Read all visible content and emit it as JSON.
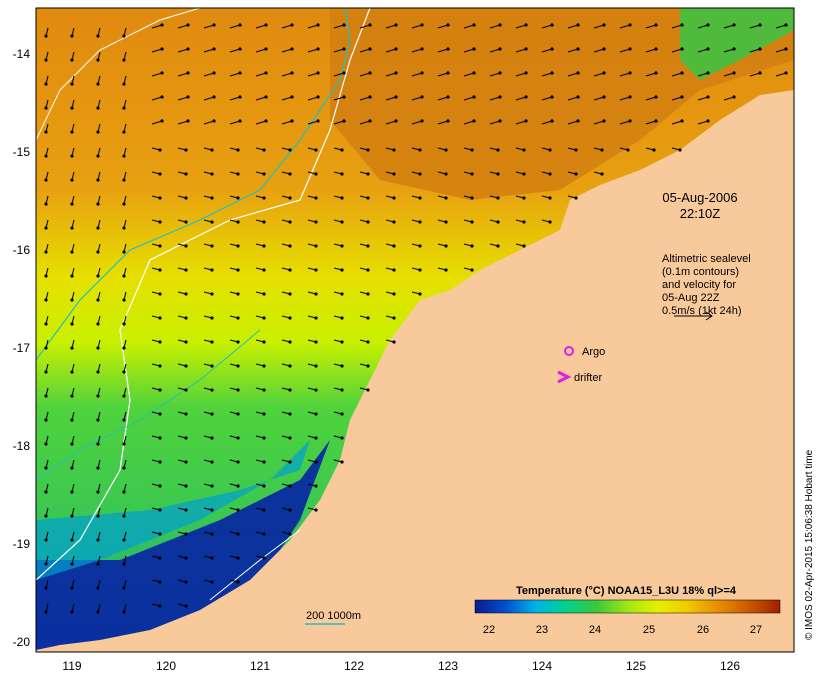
{
  "map": {
    "date_label": "05-Aug-2006",
    "time_label": "22:10Z",
    "lon_ticks": [
      "119",
      "120",
      "121",
      "122",
      "123",
      "124",
      "125",
      "126"
    ],
    "lat_ticks": [
      "-14",
      "-15",
      "-16",
      "-17",
      "-18",
      "-19",
      "-20"
    ],
    "altimetry_note": [
      "Altimetric sealevel",
      "(0.1m contours)",
      "and velocity for",
      "05-Aug 22Z",
      "0.5m/s (1kt 24h)"
    ],
    "legend_argo": "Argo",
    "legend_drifter": "drifter",
    "isobath_label": "200  1000m",
    "credit": "© IMOS 02-Apr-2015 15:06:38 Hobart time"
  },
  "colorbar": {
    "title": "Temperature (°C) NOAA15_L3U 18% ql>=4",
    "ticks": [
      "22",
      "23",
      "24",
      "25",
      "26",
      "27"
    ],
    "colors": [
      "#0a1a8c",
      "#0050d0",
      "#00b4e6",
      "#00d28c",
      "#3cc83c",
      "#a0e614",
      "#e6f000",
      "#f0c800",
      "#e68c00",
      "#c85a00",
      "#a01e00"
    ]
  },
  "colors": {
    "land": "#f8c99a",
    "argo": "#e020e0",
    "drifter": "#e020e0",
    "isobath": "#20c0c0"
  }
}
